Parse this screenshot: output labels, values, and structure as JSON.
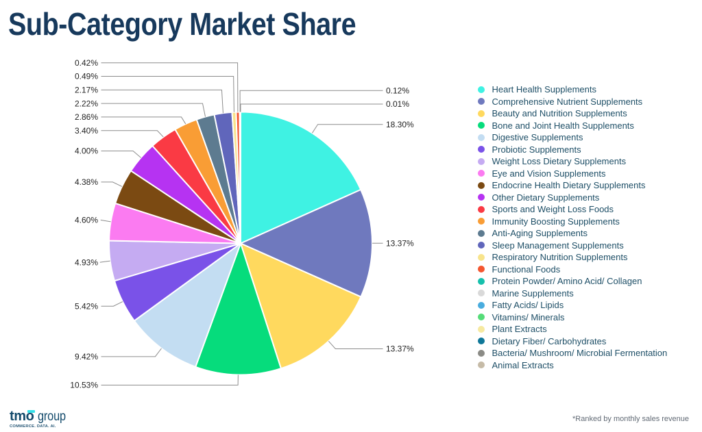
{
  "title": "Sub-Category Market Share",
  "chart_data": {
    "type": "pie",
    "title": "Sub-Category Market Share",
    "legend_position": "right",
    "label_format": "percent, two decimals, outside with leader lines",
    "categories": [
      "Heart Health Supplements",
      "Comprehensive Nutrient Supplements",
      "Beauty and Nutrition Supplements",
      "Bone and Joint Health Supplements",
      "Digestive Supplements",
      "Probiotic Supplements",
      "Weight Loss Dietary Supplements",
      "Eye and Vision Supplements",
      "Endocrine Health Dietary Supplements",
      "Other Dietary Supplements",
      "Sports and Weight Loss Foods",
      "Immunity Boosting Supplements",
      "Anti-Aging Supplements",
      "Sleep Management Supplements",
      "Respiratory Nutrition Supplements",
      "Functional Foods",
      "Protein Powder/ Amino Acid/ Collagen",
      "Marine Supplements",
      "Fatty Acids/ Lipids",
      "Vitamins/ Minerals",
      "Plant Extracts",
      "Dietary Fiber/ Carbohydrates",
      "Bacteria/ Mushroom/ Microbial Fermentation",
      "Animal Extracts"
    ],
    "values": [
      18.3,
      13.37,
      13.37,
      10.53,
      9.42,
      5.42,
      4.93,
      4.6,
      4.38,
      4.0,
      3.4,
      2.86,
      2.22,
      2.17,
      0.49,
      0.42,
      0.12,
      0.01,
      0,
      0,
      0,
      0,
      0,
      0
    ],
    "colors": [
      "#3FF2E3",
      "#6F79BE",
      "#FFD95E",
      "#06DC7C",
      "#C3DDF2",
      "#7A52E8",
      "#C5ABF2",
      "#FB7BF1",
      "#7B4A12",
      "#B633F2",
      "#FA3A44",
      "#F99D35",
      "#5D7B90",
      "#6066BB",
      "#F8E48C",
      "#F4562F",
      "#16C0AC",
      "#D9D9D9",
      "#49ACDE",
      "#55DC78",
      "#F6E9A0",
      "#0E7798",
      "#8B8B86",
      "#C6BBA7"
    ]
  },
  "footnote": "*Ranked by monthly sales revenue",
  "logo": {
    "brand_bold": "tmo",
    "brand_light": "group",
    "tagline": "COMMERCE. DATA. AI.",
    "accent_color": "#35E0E8",
    "brand_color": "#134A6B"
  },
  "theme": {
    "title_color": "#17395C",
    "legend_text_color": "#1D4E66",
    "label_text_color": "#1F1F1F",
    "leader_line_color": "#8C8C8C",
    "background": "#FFFFFF"
  }
}
